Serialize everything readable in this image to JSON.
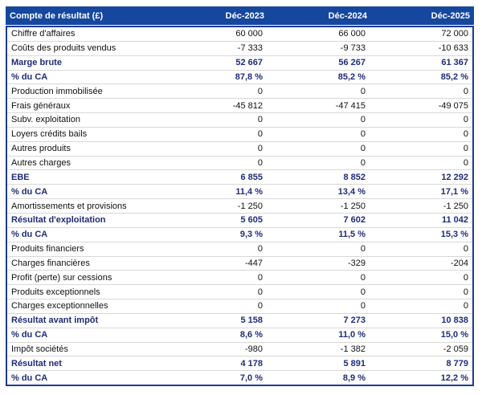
{
  "table": {
    "columns": [
      "Compte de résultat (£)",
      "Déc-2023",
      "Déc-2024",
      "Déc-2025"
    ],
    "colors": {
      "header_bg": "#16479E",
      "header_text": "#FFFFFF",
      "border": "#1E3A8F",
      "bold_text": "#1F2C7B",
      "normal_text": "#111111",
      "row_divider": "#D8D8D8"
    },
    "rows": [
      {
        "label": "Chiffre d'affaires",
        "values": [
          "60 000",
          "66 000",
          "72 000"
        ],
        "style": "normal"
      },
      {
        "label": "Coûts des produits vendus",
        "values": [
          "-7 333",
          "-9 733",
          "-10 633"
        ],
        "style": "normal"
      },
      {
        "label": "Marge brute",
        "values": [
          "52 667",
          "56 267",
          "61 367"
        ],
        "style": "bold"
      },
      {
        "label": "% du CA",
        "values": [
          "87,8 %",
          "85,2 %",
          "85,2 %"
        ],
        "style": "bold"
      },
      {
        "label": "Production immobilisée",
        "values": [
          "0",
          "0",
          "0"
        ],
        "style": "normal"
      },
      {
        "label": "Frais généraux",
        "values": [
          "-45 812",
          "-47 415",
          "-49 075"
        ],
        "style": "normal"
      },
      {
        "label": "Subv. exploitation",
        "values": [
          "0",
          "0",
          "0"
        ],
        "style": "normal"
      },
      {
        "label": "Loyers crédits bails",
        "values": [
          "0",
          "0",
          "0"
        ],
        "style": "normal"
      },
      {
        "label": "Autres produits",
        "values": [
          "0",
          "0",
          "0"
        ],
        "style": "normal"
      },
      {
        "label": "Autres charges",
        "values": [
          "0",
          "0",
          "0"
        ],
        "style": "normal"
      },
      {
        "label": "EBE",
        "values": [
          "6 855",
          "8 852",
          "12 292"
        ],
        "style": "bold"
      },
      {
        "label": "% du CA",
        "values": [
          "11,4 %",
          "13,4 %",
          "17,1 %"
        ],
        "style": "bold"
      },
      {
        "label": "Amortissements et provisions",
        "values": [
          "-1 250",
          "-1 250",
          "-1 250"
        ],
        "style": "normal"
      },
      {
        "label": "Résultat d'exploitation",
        "values": [
          "5 605",
          "7 602",
          "11 042"
        ],
        "style": "bold"
      },
      {
        "label": "% du CA",
        "values": [
          "9,3 %",
          "11,5 %",
          "15,3 %"
        ],
        "style": "bold"
      },
      {
        "label": "Produits financiers",
        "values": [
          "0",
          "0",
          "0"
        ],
        "style": "normal"
      },
      {
        "label": "Charges financières",
        "values": [
          "-447",
          "-329",
          "-204"
        ],
        "style": "normal"
      },
      {
        "label": "Profit (perte) sur cessions",
        "values": [
          "0",
          "0",
          "0"
        ],
        "style": "normal"
      },
      {
        "label": "Produits exceptionnels",
        "values": [
          "0",
          "0",
          "0"
        ],
        "style": "normal"
      },
      {
        "label": "Charges exceptionnelles",
        "values": [
          "0",
          "0",
          "0"
        ],
        "style": "normal"
      },
      {
        "label": "Résultat avant impôt",
        "values": [
          "5 158",
          "7 273",
          "10 838"
        ],
        "style": "bold"
      },
      {
        "label": "% du CA",
        "values": [
          "8,6 %",
          "11,0 %",
          "15,0 %"
        ],
        "style": "bold"
      },
      {
        "label": "Impôt sociétés",
        "values": [
          "-980",
          "-1 382",
          "-2 059"
        ],
        "style": "normal"
      },
      {
        "label": "Résultat net",
        "values": [
          "4 178",
          "5 891",
          "8 779"
        ],
        "style": "bold"
      },
      {
        "label": "% du CA",
        "values": [
          "7,0 %",
          "8,9 %",
          "12,2 %"
        ],
        "style": "bold"
      }
    ]
  }
}
